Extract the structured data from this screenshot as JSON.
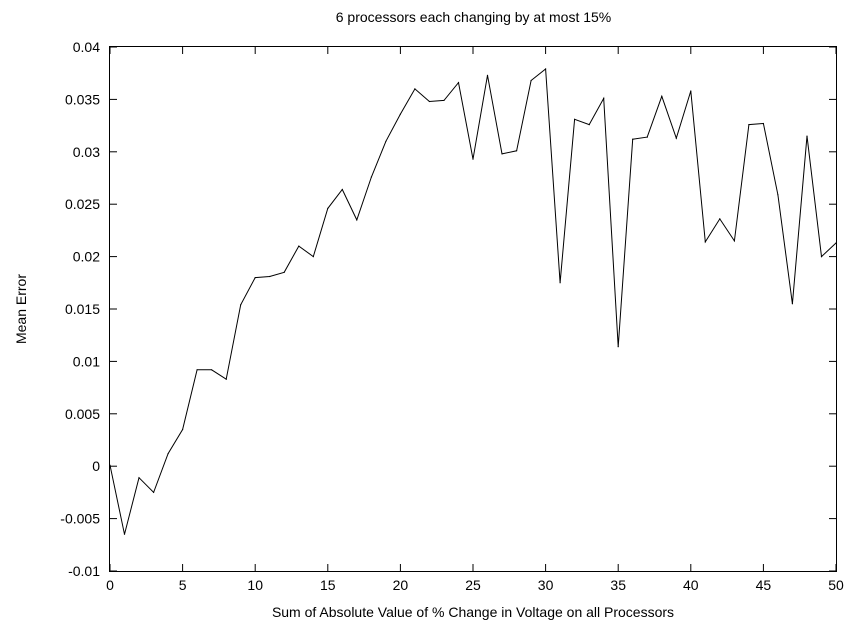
{
  "chart_data": {
    "type": "line",
    "title": "6 processors each changing by at most 15%",
    "xlabel": "Sum of Absolute Value of % Change in Voltage on all Processors",
    "ylabel": "Mean Error",
    "xlim": [
      0,
      50
    ],
    "ylim": [
      -0.01,
      0.04
    ],
    "x_ticks": [
      0,
      5,
      10,
      15,
      20,
      25,
      30,
      35,
      40,
      45,
      50
    ],
    "x_tick_labels": [
      "0",
      "5",
      "10",
      "15",
      "20",
      "25",
      "30",
      "35",
      "40",
      "45",
      "50"
    ],
    "y_ticks": [
      -0.01,
      -0.005,
      0,
      0.005,
      0.01,
      0.015,
      0.02,
      0.025,
      0.03,
      0.035,
      0.04
    ],
    "y_tick_labels": [
      "-0.01",
      "-0.005",
      "0",
      "0.005",
      "0.01",
      "0.015",
      "0.02",
      "0.025",
      "0.03",
      "0.035",
      "0.04"
    ],
    "grid": false,
    "legend": "none",
    "line_color": "#000000",
    "series": [
      {
        "x": [
          0,
          1,
          2,
          3,
          4,
          5,
          6,
          7,
          8,
          9,
          10,
          11,
          12,
          13,
          14,
          15,
          16,
          17,
          18,
          19,
          20,
          21,
          22,
          23,
          24,
          25,
          26,
          27,
          28,
          29,
          30,
          31,
          32,
          33,
          34,
          35,
          36,
          37,
          38,
          39,
          40,
          41,
          42,
          43,
          44,
          45,
          46,
          47,
          48,
          49,
          50
        ],
        "values": [
          0.0001,
          -0.0065,
          -0.0011,
          -0.0025,
          0.0012,
          0.0035,
          0.0092,
          0.0092,
          0.0083,
          0.0154,
          0.018,
          0.0181,
          0.0185,
          0.021,
          0.02,
          0.0246,
          0.0264,
          0.0235,
          0.0276,
          0.031,
          0.0336,
          0.036,
          0.0348,
          0.0349,
          0.0366,
          0.0293,
          0.0373,
          0.0298,
          0.0301,
          0.0368,
          0.0379,
          0.0175,
          0.0331,
          0.0326,
          0.0351,
          0.0114,
          0.0312,
          0.0314,
          0.0353,
          0.0313,
          0.0358,
          0.0214,
          0.0236,
          0.0215,
          0.0326,
          0.0327,
          0.0259,
          0.0155,
          0.0315,
          0.02,
          0.0213
        ]
      }
    ]
  }
}
